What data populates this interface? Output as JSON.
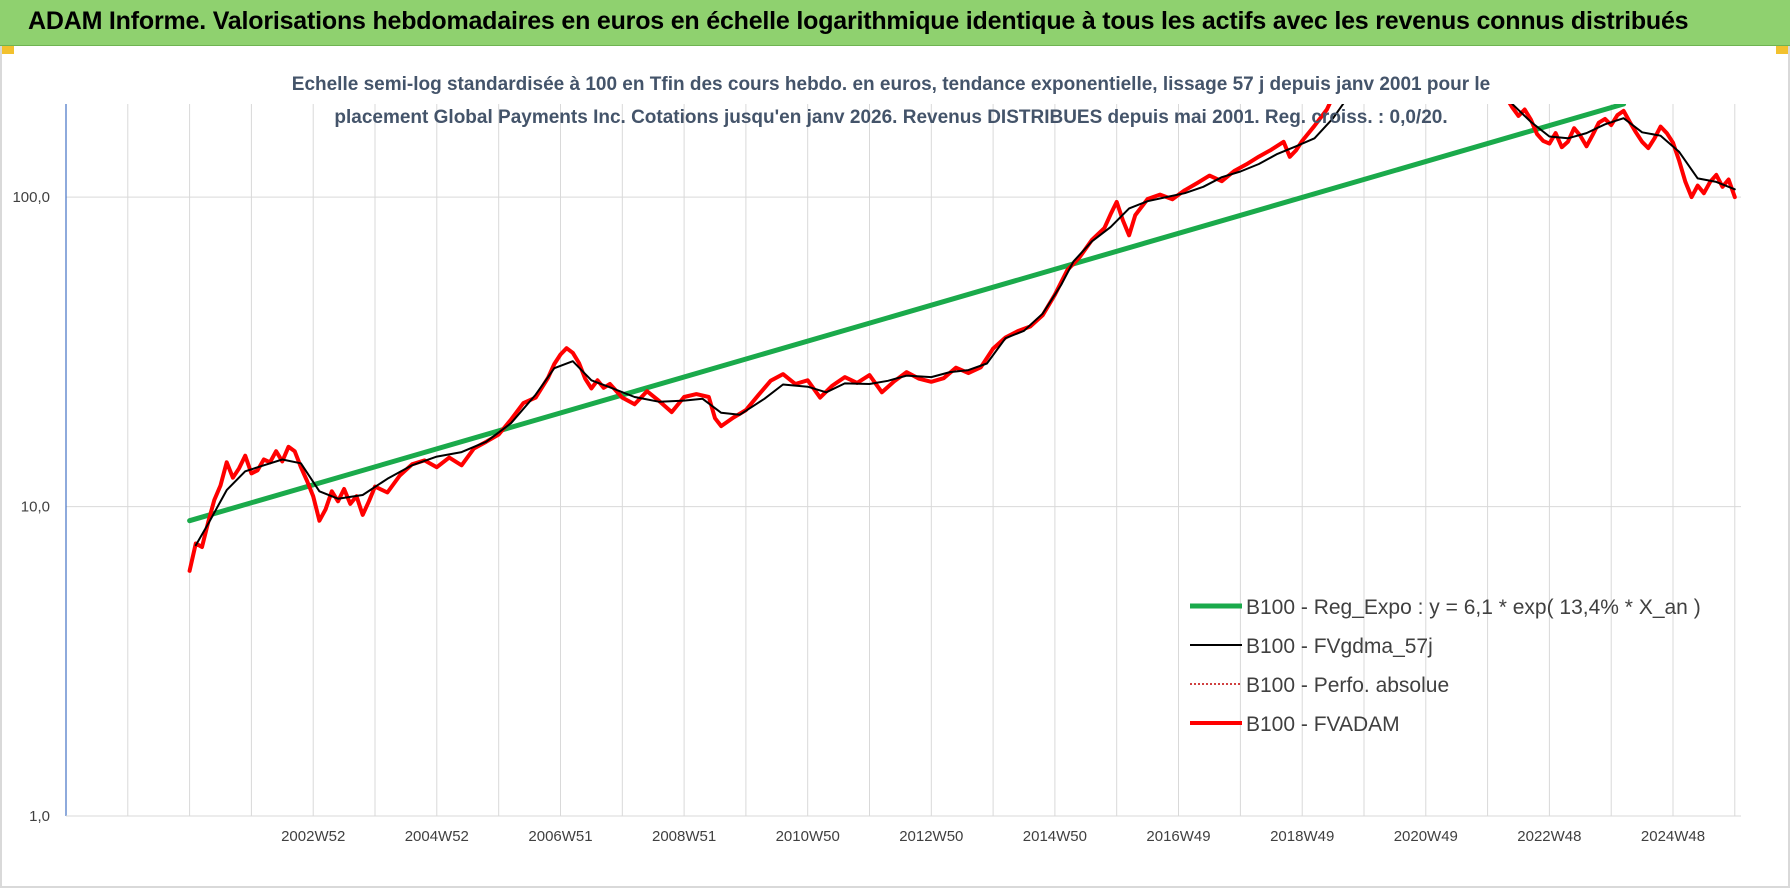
{
  "banner": {
    "title": "ADAM Informe. Valorisations hebdomadaires en euros en échelle logarithmique identique à tous les actifs avec les revenus connus distribués"
  },
  "colors": {
    "banner_bg": "#8fd16f",
    "regression": "#1aaa4b",
    "fvgdma": "#000000",
    "perfo": "#c00000",
    "fvadam": "#ff0000",
    "grid": "#d9d9d9"
  },
  "chart_data": {
    "type": "line",
    "subtitle_lines": [
      "Echelle semi-log standardisée à 100 en Tfin des cours hebdo. en euros, tendance exponentielle, lissage 57 j depuis janv 2001 pour le",
      "placement Global Payments Inc. Cotations jusqu'en janv 2026. Revenus DISTRIBUES depuis mai 2001. Reg. croiss. : 0,0/20."
    ],
    "y_scale": "log",
    "ylim": [
      1,
      200
    ],
    "y_ticks": [
      {
        "value": 1,
        "label": "1,0"
      },
      {
        "value": 10,
        "label": "10,0"
      },
      {
        "value": 100,
        "label": "100,0"
      }
    ],
    "xlim": [
      1999.0,
      2026.1
    ],
    "x_ticks": [
      {
        "x": 2003.0,
        "label": "2002W52"
      },
      {
        "x": 2005.0,
        "label": "2004W52"
      },
      {
        "x": 2007.0,
        "label": "2006W51"
      },
      {
        "x": 2009.0,
        "label": "2008W51"
      },
      {
        "x": 2011.0,
        "label": "2010W50"
      },
      {
        "x": 2013.0,
        "label": "2012W50"
      },
      {
        "x": 2015.0,
        "label": "2014W50"
      },
      {
        "x": 2017.0,
        "label": "2016W49"
      },
      {
        "x": 2019.0,
        "label": "2018W49"
      },
      {
        "x": 2021.0,
        "label": "2020W49"
      },
      {
        "x": 2023.0,
        "label": "2022W48"
      },
      {
        "x": 2025.0,
        "label": "2024W48"
      }
    ],
    "grid_x": [
      2000,
      2001,
      2002,
      2003,
      2004,
      2005,
      2006,
      2007,
      2008,
      2009,
      2010,
      2011,
      2012,
      2013,
      2014,
      2015,
      2016,
      2017,
      2018,
      2019,
      2020,
      2021,
      2022,
      2023,
      2024,
      2025,
      2026
    ],
    "legend_position": "lower-right",
    "series": [
      {
        "name": "B100 - Reg_Expo : y = 6,1 * exp( 13,4% *  X_an )",
        "style": "regression",
        "points": [
          [
            2001.0,
            9.0
          ],
          [
            2024.2,
            200.0
          ]
        ]
      },
      {
        "name": "B100 - FVgdma_57j",
        "style": "fvgdma",
        "points": [
          [
            2001.1,
            7.5
          ],
          [
            2001.3,
            8.8
          ],
          [
            2001.6,
            11.3
          ],
          [
            2001.9,
            13.0
          ],
          [
            2002.2,
            13.6
          ],
          [
            2002.5,
            14.2
          ],
          [
            2002.8,
            13.8
          ],
          [
            2003.1,
            11.2
          ],
          [
            2003.4,
            10.6
          ],
          [
            2003.8,
            10.9
          ],
          [
            2004.2,
            12.3
          ],
          [
            2004.6,
            13.6
          ],
          [
            2005.0,
            14.5
          ],
          [
            2005.4,
            15.0
          ],
          [
            2005.8,
            16.2
          ],
          [
            2006.2,
            18.6
          ],
          [
            2006.6,
            23.0
          ],
          [
            2006.9,
            28.0
          ],
          [
            2007.2,
            29.5
          ],
          [
            2007.5,
            25.6
          ],
          [
            2007.8,
            24.3
          ],
          [
            2008.2,
            22.6
          ],
          [
            2008.6,
            21.8
          ],
          [
            2009.0,
            22.0
          ],
          [
            2009.3,
            22.3
          ],
          [
            2009.6,
            20.1
          ],
          [
            2009.9,
            19.8
          ],
          [
            2010.3,
            22.3
          ],
          [
            2010.6,
            24.8
          ],
          [
            2011.0,
            24.4
          ],
          [
            2011.3,
            23.4
          ],
          [
            2011.6,
            25.0
          ],
          [
            2012.0,
            24.9
          ],
          [
            2012.3,
            25.5
          ],
          [
            2012.6,
            26.5
          ],
          [
            2013.0,
            26.2
          ],
          [
            2013.3,
            27.2
          ],
          [
            2013.6,
            27.6
          ],
          [
            2013.9,
            29.0
          ],
          [
            2014.2,
            35.0
          ],
          [
            2014.5,
            37.0
          ],
          [
            2014.8,
            42.0
          ],
          [
            2015.1,
            52.0
          ],
          [
            2015.3,
            62.0
          ],
          [
            2015.6,
            72.0
          ],
          [
            2015.9,
            80.0
          ],
          [
            2016.2,
            92.0
          ],
          [
            2016.5,
            97.0
          ],
          [
            2016.8,
            100.0
          ],
          [
            2017.1,
            103.0
          ],
          [
            2017.4,
            108.0
          ],
          [
            2017.7,
            116.0
          ],
          [
            2018.0,
            121.0
          ],
          [
            2018.3,
            128.0
          ],
          [
            2018.6,
            138.0
          ],
          [
            2018.9,
            146.0
          ],
          [
            2019.2,
            155.0
          ],
          [
            2019.5,
            180.0
          ],
          [
            2019.7,
            205.0
          ]
        ]
      },
      {
        "name": "B100 - Perfo. absolue",
        "style": "perfo",
        "points": []
      },
      {
        "name": "B100 - FVADAM",
        "style": "fvadam",
        "points": [
          [
            2001.0,
            6.2
          ],
          [
            2001.1,
            7.6
          ],
          [
            2001.2,
            7.4
          ],
          [
            2001.3,
            8.9
          ],
          [
            2001.4,
            10.5
          ],
          [
            2001.5,
            11.7
          ],
          [
            2001.6,
            13.9
          ],
          [
            2001.7,
            12.4
          ],
          [
            2001.8,
            13.3
          ],
          [
            2001.9,
            14.6
          ],
          [
            2002.0,
            12.8
          ],
          [
            2002.1,
            13.1
          ],
          [
            2002.2,
            14.2
          ],
          [
            2002.3,
            13.9
          ],
          [
            2002.4,
            15.1
          ],
          [
            2002.5,
            14.0
          ],
          [
            2002.6,
            15.6
          ],
          [
            2002.7,
            15.1
          ],
          [
            2002.8,
            13.4
          ],
          [
            2002.9,
            12.1
          ],
          [
            2003.0,
            10.8
          ],
          [
            2003.1,
            9.0
          ],
          [
            2003.2,
            9.8
          ],
          [
            2003.3,
            11.2
          ],
          [
            2003.4,
            10.4
          ],
          [
            2003.5,
            11.4
          ],
          [
            2003.6,
            10.2
          ],
          [
            2003.7,
            10.8
          ],
          [
            2003.8,
            9.4
          ],
          [
            2003.9,
            10.4
          ],
          [
            2004.0,
            11.6
          ],
          [
            2004.2,
            11.1
          ],
          [
            2004.4,
            12.6
          ],
          [
            2004.6,
            13.7
          ],
          [
            2004.8,
            14.1
          ],
          [
            2005.0,
            13.4
          ],
          [
            2005.2,
            14.4
          ],
          [
            2005.4,
            13.6
          ],
          [
            2005.6,
            15.4
          ],
          [
            2005.8,
            16.2
          ],
          [
            2006.0,
            17.1
          ],
          [
            2006.2,
            19.1
          ],
          [
            2006.4,
            21.6
          ],
          [
            2006.6,
            22.5
          ],
          [
            2006.8,
            26.1
          ],
          [
            2006.9,
            28.9
          ],
          [
            2007.0,
            31.0
          ],
          [
            2007.1,
            32.5
          ],
          [
            2007.2,
            31.4
          ],
          [
            2007.3,
            29.1
          ],
          [
            2007.4,
            25.9
          ],
          [
            2007.5,
            24.1
          ],
          [
            2007.6,
            25.6
          ],
          [
            2007.7,
            24.2
          ],
          [
            2007.8,
            24.9
          ],
          [
            2008.0,
            22.5
          ],
          [
            2008.2,
            21.4
          ],
          [
            2008.4,
            23.6
          ],
          [
            2008.6,
            21.9
          ],
          [
            2008.8,
            20.2
          ],
          [
            2009.0,
            22.6
          ],
          [
            2009.2,
            23.1
          ],
          [
            2009.4,
            22.6
          ],
          [
            2009.5,
            19.3
          ],
          [
            2009.6,
            18.2
          ],
          [
            2009.8,
            19.4
          ],
          [
            2010.0,
            20.5
          ],
          [
            2010.2,
            22.9
          ],
          [
            2010.4,
            25.5
          ],
          [
            2010.6,
            26.8
          ],
          [
            2010.8,
            24.9
          ],
          [
            2011.0,
            25.6
          ],
          [
            2011.2,
            22.5
          ],
          [
            2011.4,
            24.6
          ],
          [
            2011.6,
            26.2
          ],
          [
            2011.8,
            25.1
          ],
          [
            2012.0,
            26.6
          ],
          [
            2012.2,
            23.4
          ],
          [
            2012.4,
            25.4
          ],
          [
            2012.6,
            27.2
          ],
          [
            2012.8,
            25.9
          ],
          [
            2013.0,
            25.3
          ],
          [
            2013.2,
            26.0
          ],
          [
            2013.4,
            28.1
          ],
          [
            2013.6,
            27.0
          ],
          [
            2013.8,
            28.2
          ],
          [
            2014.0,
            32.4
          ],
          [
            2014.2,
            35.2
          ],
          [
            2014.4,
            36.9
          ],
          [
            2014.6,
            38.2
          ],
          [
            2014.8,
            41.5
          ],
          [
            2015.0,
            48.4
          ],
          [
            2015.2,
            58.1
          ],
          [
            2015.4,
            64.0
          ],
          [
            2015.6,
            72.8
          ],
          [
            2015.8,
            79.4
          ],
          [
            2015.9,
            88.0
          ],
          [
            2016.0,
            96.5
          ],
          [
            2016.1,
            84.1
          ],
          [
            2016.2,
            75.3
          ],
          [
            2016.3,
            87.5
          ],
          [
            2016.5,
            98.6
          ],
          [
            2016.7,
            101.9
          ],
          [
            2016.9,
            98.4
          ],
          [
            2017.1,
            105.2
          ],
          [
            2017.3,
            111.0
          ],
          [
            2017.5,
            117.4
          ],
          [
            2017.7,
            112.6
          ],
          [
            2017.9,
            121.5
          ],
          [
            2018.1,
            127.7
          ],
          [
            2018.3,
            135.2
          ],
          [
            2018.5,
            142.3
          ],
          [
            2018.7,
            151.0
          ],
          [
            2018.8,
            135.0
          ],
          [
            2018.9,
            141.6
          ],
          [
            2019.0,
            152.0
          ],
          [
            2019.2,
            170.0
          ],
          [
            2019.4,
            192.0
          ],
          [
            2019.5,
            212.0
          ]
        ]
      },
      {
        "name": "",
        "style": "fvadam",
        "points": [
          [
            2022.3,
            210.0
          ],
          [
            2022.4,
            195.0
          ],
          [
            2022.5,
            183.0
          ],
          [
            2022.6,
            192.0
          ],
          [
            2022.7,
            178.0
          ],
          [
            2022.8,
            160.0
          ],
          [
            2022.9,
            152.0
          ],
          [
            2023.0,
            149.0
          ],
          [
            2023.1,
            161.0
          ],
          [
            2023.2,
            145.0
          ],
          [
            2023.3,
            151.0
          ],
          [
            2023.4,
            167.0
          ],
          [
            2023.5,
            158.0
          ],
          [
            2023.6,
            146.0
          ],
          [
            2023.7,
            159.0
          ],
          [
            2023.8,
            174.0
          ],
          [
            2023.9,
            179.0
          ],
          [
            2024.0,
            171.0
          ],
          [
            2024.1,
            184.0
          ],
          [
            2024.2,
            190.0
          ],
          [
            2024.3,
            175.0
          ],
          [
            2024.4,
            162.0
          ],
          [
            2024.5,
            151.0
          ],
          [
            2024.6,
            144.0
          ],
          [
            2024.7,
            155.0
          ],
          [
            2024.8,
            169.0
          ],
          [
            2024.9,
            161.0
          ],
          [
            2025.0,
            150.0
          ],
          [
            2025.1,
            131.0
          ],
          [
            2025.2,
            112.0
          ],
          [
            2025.3,
            100.0
          ],
          [
            2025.4,
            109.0
          ],
          [
            2025.5,
            103.0
          ],
          [
            2025.6,
            112.0
          ],
          [
            2025.7,
            118.0
          ],
          [
            2025.8,
            108.0
          ],
          [
            2025.9,
            114.0
          ],
          [
            2026.0,
            100.0
          ]
        ]
      },
      {
        "name": "",
        "style": "fvgdma",
        "points": [
          [
            2022.4,
            200.0
          ],
          [
            2022.7,
            175.0
          ],
          [
            2023.0,
            157.0
          ],
          [
            2023.3,
            155.0
          ],
          [
            2023.6,
            161.0
          ],
          [
            2023.9,
            172.0
          ],
          [
            2024.2,
            180.0
          ],
          [
            2024.5,
            162.0
          ],
          [
            2024.8,
            158.0
          ],
          [
            2025.1,
            140.0
          ],
          [
            2025.4,
            115.0
          ],
          [
            2025.7,
            112.0
          ],
          [
            2026.0,
            106.0
          ]
        ]
      }
    ]
  }
}
